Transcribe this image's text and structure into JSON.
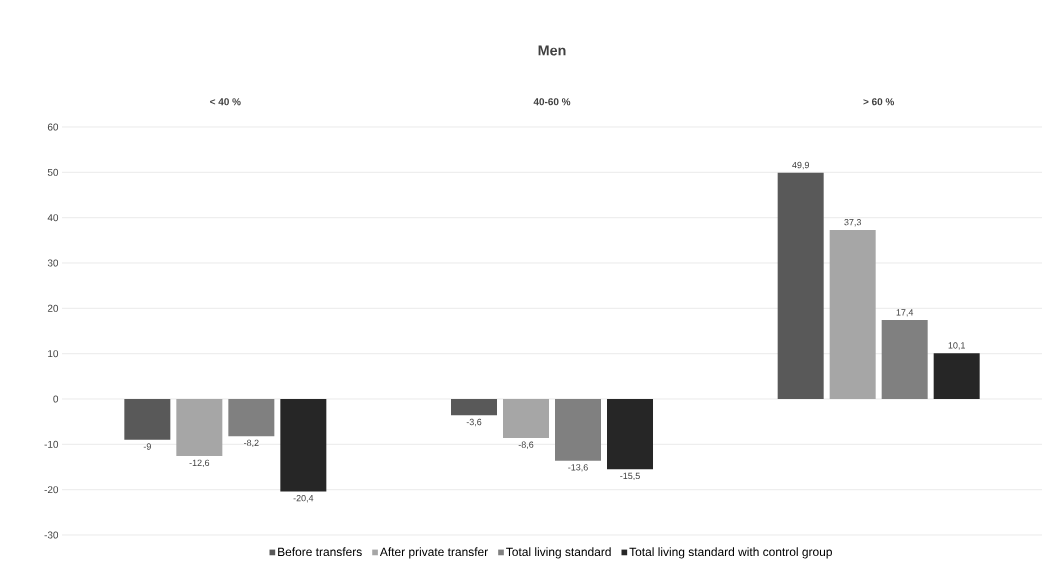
{
  "chart_data": {
    "type": "bar",
    "title": "Men",
    "categories": [
      "< 40  %",
      "40-60 %",
      "> 60 %"
    ],
    "series": [
      {
        "name": "Before transfers",
        "color": "#595959",
        "values": [
          -9,
          -3.6,
          49.9
        ],
        "value_labels": [
          "-9",
          "-3,6",
          "49,9"
        ]
      },
      {
        "name": "After private transfer",
        "color": "#a6a6a6",
        "values": [
          -12.6,
          -8.6,
          37.3
        ],
        "value_labels": [
          "-12,6",
          "-8,6",
          "37,3"
        ]
      },
      {
        "name": "Total living standard",
        "color": "#808080",
        "values": [
          -8.2,
          -13.6,
          17.4
        ],
        "value_labels": [
          "-8,2",
          "-13,6",
          "17,4"
        ]
      },
      {
        "name": "Total living standard with control group",
        "color": "#262626",
        "values": [
          -20.4,
          -15.5,
          10.1
        ],
        "value_labels": [
          "-20,4",
          "-15,5",
          "10,1"
        ]
      }
    ],
    "ylim": [
      -30,
      60
    ],
    "yticks": [
      -30,
      -20,
      -10,
      0,
      10,
      20,
      30,
      40,
      50,
      60
    ],
    "grid": "y",
    "legend": "bottom"
  }
}
